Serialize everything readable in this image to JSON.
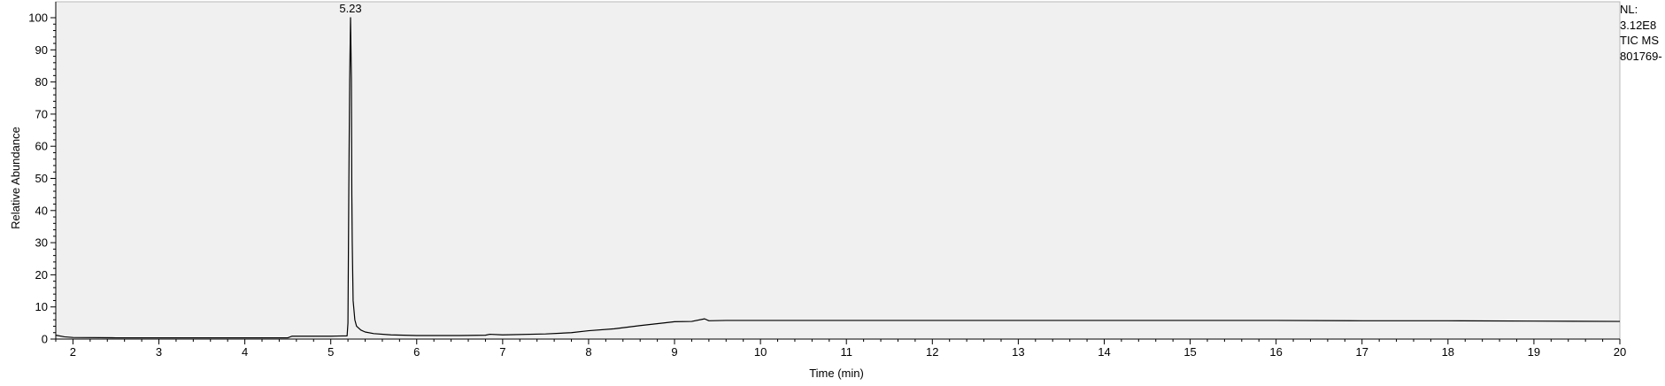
{
  "chart_data": {
    "type": "line",
    "title": "",
    "xlabel": "Time (min)",
    "ylabel": "Relative Abundance",
    "xlim": [
      1.8,
      20
    ],
    "ylim": [
      0,
      100
    ],
    "x_ticks": [
      2,
      3,
      4,
      5,
      6,
      7,
      8,
      9,
      10,
      11,
      12,
      13,
      14,
      15,
      16,
      17,
      18,
      19,
      20
    ],
    "y_ticks": [
      0,
      10,
      20,
      30,
      40,
      50,
      60,
      70,
      80,
      90,
      100
    ],
    "grid": false,
    "background": "#f0f0f0",
    "line_color": "#000000",
    "peak_annotations": [
      {
        "label": "5.23",
        "x": 5.23,
        "y": 100
      }
    ],
    "series": [
      {
        "x": [
          1.8,
          1.9,
          2.0,
          2.5,
          3.0,
          3.5,
          4.0,
          4.5,
          4.55,
          5.0,
          5.19,
          5.2,
          5.21,
          5.22,
          5.23,
          5.24,
          5.245,
          5.25,
          5.26,
          5.28,
          5.3,
          5.35,
          5.4,
          5.5,
          5.7,
          6.0,
          6.5,
          6.8,
          6.85,
          7.0,
          7.5,
          7.8,
          8.0,
          8.3,
          8.6,
          8.9,
          9.0,
          9.2,
          9.35,
          9.4,
          9.6,
          10.0,
          11.0,
          12.0,
          13.0,
          14.0,
          15.0,
          16.0,
          17.0,
          18.0,
          19.0,
          20.0
        ],
        "y": [
          1.2,
          0.7,
          0.5,
          0.4,
          0.4,
          0.4,
          0.4,
          0.4,
          0.9,
          0.9,
          1.0,
          5.0,
          47,
          81,
          100,
          81,
          45,
          30,
          12,
          6.0,
          4.0,
          2.8,
          2.2,
          1.7,
          1.3,
          1.1,
          1.1,
          1.2,
          1.5,
          1.3,
          1.6,
          2.0,
          2.6,
          3.2,
          4.2,
          5.1,
          5.4,
          5.5,
          6.3,
          5.7,
          5.8,
          5.8,
          5.8,
          5.8,
          5.8,
          5.8,
          5.8,
          5.8,
          5.7,
          5.7,
          5.6,
          5.5
        ]
      }
    ]
  },
  "side_info": {
    "nl_label": "NL:",
    "nl_value": "3.12E8",
    "scan_type": "TIC  MS",
    "file_name": "801769-"
  }
}
